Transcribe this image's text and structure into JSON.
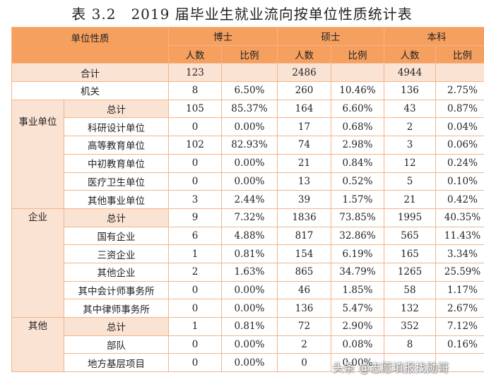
{
  "title": "表 3.2　2019 届毕业生就业流向按单位性质统计表",
  "header": {
    "unit_type": "单位性质",
    "groups": [
      "博士",
      "硕士",
      "本科"
    ],
    "count": "人数",
    "ratio": "比例"
  },
  "total": {
    "label": "合计",
    "cells": [
      "123",
      "",
      "2486",
      "",
      "4944",
      ""
    ]
  },
  "jiguan": {
    "label": "机关",
    "cells": [
      "8",
      "6.50%",
      "260",
      "10.46%",
      "136",
      "2.75%"
    ]
  },
  "shiye": {
    "label": "事业单位",
    "rows": [
      {
        "label": "总计",
        "cells": [
          "105",
          "85.37%",
          "164",
          "6.60%",
          "43",
          "0.87%"
        ]
      },
      {
        "label": "科研设计单位",
        "cells": [
          "0",
          "0.00%",
          "17",
          "0.68%",
          "2",
          "0.04%"
        ]
      },
      {
        "label": "高等教育单位",
        "cells": [
          "102",
          "82.93%",
          "74",
          "2.98%",
          "3",
          "0.06%"
        ]
      },
      {
        "label": "中初教育单位",
        "cells": [
          "0",
          "0.00%",
          "21",
          "0.84%",
          "12",
          "0.24%"
        ]
      },
      {
        "label": "医疗卫生单位",
        "cells": [
          "0",
          "0.00%",
          "13",
          "0.52%",
          "5",
          "0.10%"
        ]
      },
      {
        "label": "其他事业单位",
        "cells": [
          "3",
          "2.44%",
          "39",
          "1.57%",
          "21",
          "0.42%"
        ]
      }
    ]
  },
  "qiye": {
    "label": "企业",
    "rows": [
      {
        "label": "总计",
        "cells": [
          "9",
          "7.32%",
          "1836",
          "73.85%",
          "1995",
          "40.35%"
        ]
      },
      {
        "label": "国有企业",
        "cells": [
          "6",
          "4.88%",
          "817",
          "32.86%",
          "565",
          "11.43%"
        ]
      },
      {
        "label": "三资企业",
        "cells": [
          "1",
          "0.81%",
          "154",
          "6.19%",
          "165",
          "3.34%"
        ]
      },
      {
        "label": "其他企业",
        "cells": [
          "2",
          "1.63%",
          "865",
          "34.79%",
          "1265",
          "25.59%"
        ]
      },
      {
        "label": "其中会计师事务所",
        "cells": [
          "0",
          "0.00%",
          "46",
          "1.85%",
          "58",
          "1.17%"
        ]
      },
      {
        "label": "其中律师事务所",
        "cells": [
          "0",
          "0.00%",
          "136",
          "5.47%",
          "132",
          "2.67%"
        ]
      }
    ]
  },
  "qita": {
    "label": "其他",
    "rows": [
      {
        "label": "总计",
        "cells": [
          "1",
          "0.81%",
          "72",
          "2.90%",
          "352",
          "7.12%"
        ]
      },
      {
        "label": "部队",
        "cells": [
          "0",
          "0.00%",
          "2",
          "0.08%",
          "8",
          "0.16%"
        ]
      },
      {
        "label": "地方基层项目",
        "cells": [
          "0",
          "0.00%",
          "0",
          "0.00%",
          "",
          ""
        ]
      }
    ]
  },
  "watermark": "头条 @志愿填报找勋哥",
  "colors": {
    "header_bg": "#f6a060",
    "highlight_bg": "#fbe3d4",
    "border": "#f3b489"
  }
}
